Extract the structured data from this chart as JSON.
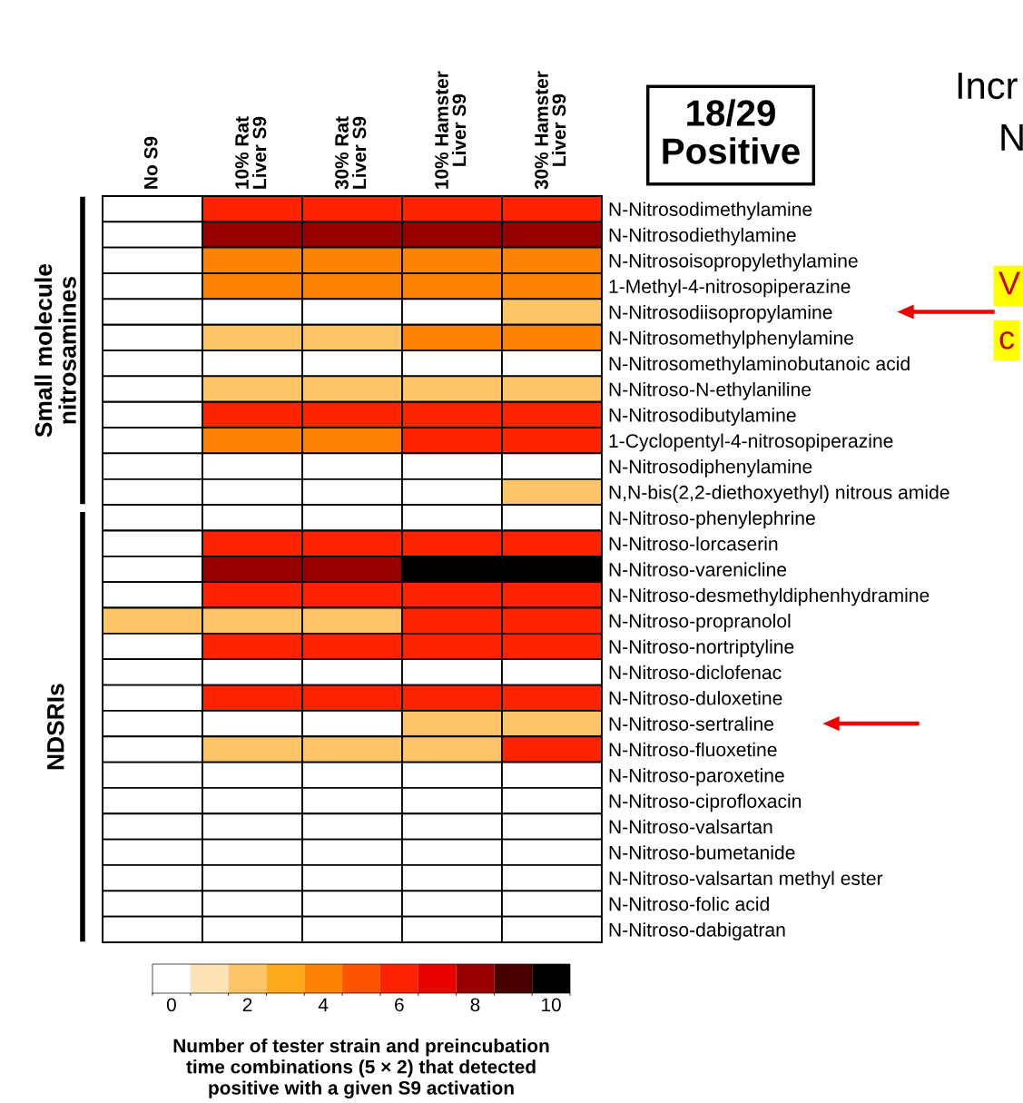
{
  "chart_data": {
    "type": "heatmap",
    "title": "18/29\nPositive",
    "categories": [
      "No S9",
      "10% Rat\nLiver S9",
      "30% Rat\nLiver S9",
      "10% Hamster\nLiver S9",
      "30% Hamster\nLiver S9"
    ],
    "y_categories": [
      "N-Nitrosodimethylamine",
      "N-Nitrosodiethylamine",
      "N-Nitrosoisopropylethylamine",
      "1-Methyl-4-nitrosopiperazine",
      "N-Nitrosodiisopropylamine",
      "N-Nitrosomethylphenylamine",
      "N-Nitrosomethylaminobutanoic acid",
      "N-Nitroso-N-ethylaniline",
      "N-Nitrosodibutylamine",
      "1-Cyclopentyl-4-nitrosopiperazine",
      "N-Nitrosodiphenylamine",
      "N,N-bis(2,2-diethoxyethyl) nitrous amide",
      "N-Nitroso-phenylephrine",
      "N-Nitroso-lorcaserin",
      "N-Nitroso-varenicline",
      "N-Nitroso-desmethyldiphenhydramine",
      "N-Nitroso-propranolol",
      "N-Nitroso-nortriptyline",
      "N-Nitroso-diclofenac",
      "N-Nitroso-duloxetine",
      "N-Nitroso-sertraline",
      "N-Nitroso-fluoxetine",
      "N-Nitroso-paroxetine",
      "N-Nitroso-ciprofloxacin",
      "N-Nitroso-valsartan",
      "N-Nitroso-bumetanide",
      "N-Nitroso-valsartan methyl ester",
      "N-Nitroso-folic acid",
      "N-Nitroso-dabigatran"
    ],
    "cells": [
      [
        0,
        6,
        6,
        6,
        6
      ],
      [
        0,
        8,
        8,
        8,
        8
      ],
      [
        0,
        4,
        4,
        4,
        4
      ],
      [
        0,
        4,
        4,
        4,
        4
      ],
      [
        0,
        0,
        0,
        0,
        2
      ],
      [
        0,
        2,
        2,
        4,
        4
      ],
      [
        0,
        0,
        0,
        0,
        0
      ],
      [
        0,
        2,
        2,
        2,
        2
      ],
      [
        0,
        6,
        6,
        6,
        6
      ],
      [
        0,
        4,
        4,
        6,
        6
      ],
      [
        0,
        0,
        0,
        0,
        0
      ],
      [
        0,
        0,
        0,
        0,
        2
      ],
      [
        0,
        0,
        0,
        0,
        0
      ],
      [
        0,
        6,
        6,
        6,
        6
      ],
      [
        0,
        8,
        8,
        10,
        10
      ],
      [
        0,
        6,
        6,
        6,
        6
      ],
      [
        2,
        2,
        2,
        6,
        6
      ],
      [
        0,
        6,
        6,
        6,
        6
      ],
      [
        0,
        0,
        0,
        0,
        0
      ],
      [
        0,
        6,
        6,
        6,
        6
      ],
      [
        0,
        0,
        0,
        2,
        2
      ],
      [
        0,
        2,
        2,
        2,
        6
      ],
      [
        0,
        0,
        0,
        0,
        0
      ],
      [
        0,
        0,
        0,
        0,
        0
      ],
      [
        0,
        0,
        0,
        0,
        0
      ],
      [
        0,
        0,
        0,
        0,
        0
      ],
      [
        0,
        0,
        0,
        0,
        0
      ],
      [
        0,
        0,
        0,
        0,
        0
      ],
      [
        0,
        0,
        0,
        0,
        0
      ]
    ],
    "colors": [
      "#ffffff",
      "#fde3b5",
      "#fdc567",
      "#fca91a",
      "#fd8305",
      "#fd5303",
      "#fd2200",
      "#e60000",
      "#960000",
      "#4b0000",
      "#000000"
    ],
    "clim": [
      -0.5,
      10.5
    ],
    "cticks": [
      0,
      2,
      4,
      6,
      8,
      10
    ],
    "clabel": "Number of tester strain and preincubation\ntime combinations (5 × 2) that detected\npositive with a given S9 activation",
    "annotations": [
      "Small molecule\nnitrosamines",
      "NDSRIs",
      "Incr",
      "N",
      "V",
      "c"
    ]
  }
}
